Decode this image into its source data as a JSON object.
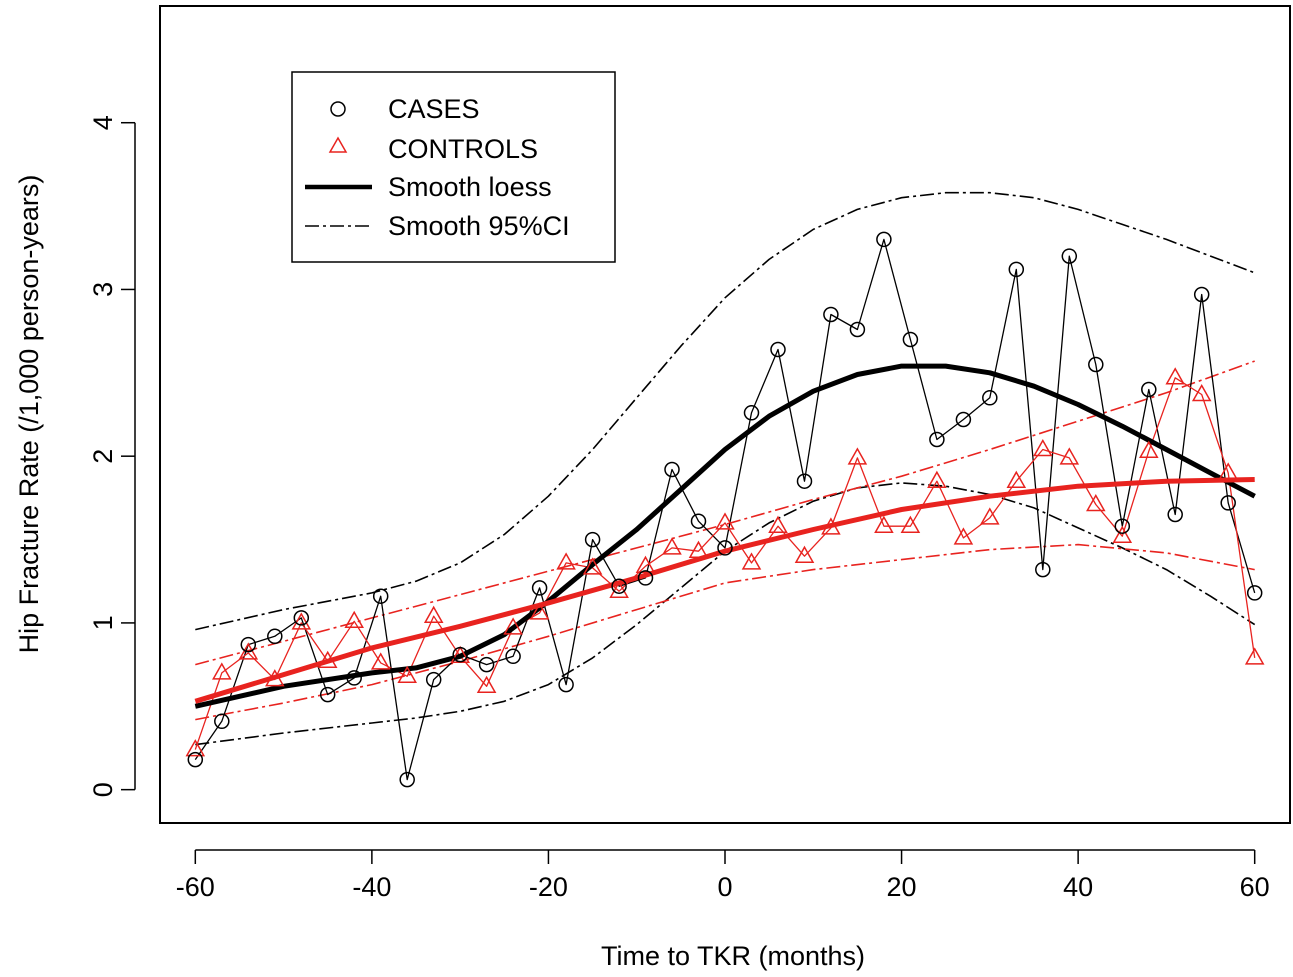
{
  "chart_data": {
    "type": "line",
    "title": "",
    "xlabel": "Time to TKR (months)",
    "ylabel": "Hip Fracture Rate (/1,000 person-years)",
    "xlim": [
      -64,
      64
    ],
    "ylim": [
      -0.2,
      4.7
    ],
    "xticks": [
      -60,
      -40,
      -20,
      0,
      20,
      40,
      60
    ],
    "yticks": [
      0,
      1,
      2,
      3,
      4
    ],
    "grid": false,
    "legend_position": "top-left",
    "legend": [
      {
        "key": "cases",
        "label": "CASES"
      },
      {
        "key": "controls",
        "label": "CONTROLS"
      },
      {
        "key": "loess",
        "label": "Smooth loess"
      },
      {
        "key": "ci",
        "label": "Smooth 95%CI"
      }
    ],
    "colors": {
      "cases": "#000000",
      "controls": "#e8231f"
    },
    "cases": {
      "x": [
        -60,
        -57,
        -54,
        -51,
        -48,
        -45,
        -42,
        -39,
        -36,
        -33,
        -30,
        -27,
        -24,
        -21,
        -18,
        -15,
        -12,
        -9,
        -6,
        -3,
        0,
        3,
        6,
        9,
        12,
        15,
        18,
        21,
        24,
        27,
        30,
        33,
        36,
        39,
        42,
        45,
        48,
        51,
        54,
        57,
        60
      ],
      "y": [
        0.18,
        0.41,
        0.87,
        0.92,
        1.03,
        0.57,
        0.67,
        1.16,
        0.06,
        0.66,
        0.81,
        0.75,
        0.8,
        1.21,
        0.63,
        1.5,
        1.22,
        1.27,
        1.92,
        1.61,
        1.45,
        2.26,
        2.64,
        1.85,
        2.85,
        2.76,
        3.3,
        2.7,
        2.1,
        2.22,
        2.35,
        3.12,
        1.32,
        3.2,
        2.55,
        1.58,
        2.4,
        1.65,
        2.97,
        1.72,
        1.18
      ]
    },
    "controls": {
      "x": [
        -60,
        -57,
        -54,
        -51,
        -48,
        -45,
        -42,
        -39,
        -36,
        -33,
        -30,
        -27,
        -24,
        -21,
        -18,
        -15,
        -12,
        -9,
        -6,
        -3,
        0,
        3,
        6,
        9,
        12,
        15,
        18,
        21,
        24,
        27,
        30,
        33,
        36,
        39,
        42,
        45,
        48,
        51,
        54,
        57,
        60
      ],
      "y": [
        0.24,
        0.7,
        0.82,
        0.66,
        1.0,
        0.77,
        1.01,
        0.76,
        0.68,
        1.04,
        0.8,
        0.62,
        0.97,
        1.06,
        1.36,
        1.33,
        1.19,
        1.34,
        1.45,
        1.43,
        1.6,
        1.36,
        1.58,
        1.4,
        1.57,
        1.99,
        1.58,
        1.58,
        1.85,
        1.51,
        1.63,
        1.85,
        2.04,
        1.99,
        1.71,
        1.52,
        2.03,
        2.47,
        2.37,
        1.9,
        0.79
      ]
    },
    "smooth_cases": {
      "x": [
        -60,
        -50,
        -40,
        -35,
        -30,
        -25,
        -20,
        -15,
        -10,
        -5,
        0,
        5,
        10,
        15,
        20,
        25,
        30,
        35,
        40,
        45,
        50,
        55,
        60
      ],
      "y": [
        0.5,
        0.62,
        0.7,
        0.73,
        0.8,
        0.93,
        1.13,
        1.35,
        1.56,
        1.8,
        2.04,
        2.24,
        2.39,
        2.49,
        2.54,
        2.54,
        2.5,
        2.42,
        2.31,
        2.18,
        2.04,
        1.9,
        1.76
      ]
    },
    "smooth_cases_ci_upper": {
      "x": [
        -60,
        -50,
        -40,
        -35,
        -30,
        -25,
        -20,
        -15,
        -10,
        -5,
        0,
        5,
        10,
        15,
        20,
        25,
        30,
        35,
        40,
        45,
        50,
        55,
        60
      ],
      "y": [
        0.96,
        1.08,
        1.18,
        1.25,
        1.36,
        1.53,
        1.76,
        2.04,
        2.35,
        2.66,
        2.95,
        3.18,
        3.36,
        3.48,
        3.55,
        3.58,
        3.58,
        3.55,
        3.48,
        3.39,
        3.3,
        3.2,
        3.1
      ]
    },
    "smooth_cases_ci_lower": {
      "x": [
        -60,
        -50,
        -40,
        -35,
        -30,
        -25,
        -20,
        -15,
        -10,
        -5,
        0,
        5,
        10,
        15,
        20,
        25,
        30,
        35,
        40,
        45,
        50,
        55,
        60
      ],
      "y": [
        0.27,
        0.34,
        0.4,
        0.43,
        0.47,
        0.53,
        0.63,
        0.79,
        0.99,
        1.21,
        1.43,
        1.6,
        1.73,
        1.81,
        1.84,
        1.82,
        1.77,
        1.69,
        1.57,
        1.45,
        1.32,
        1.16,
        0.99
      ]
    },
    "smooth_controls": {
      "x": [
        -60,
        -50,
        -40,
        -30,
        -20,
        -10,
        0,
        10,
        20,
        30,
        40,
        50,
        60
      ],
      "y": [
        0.53,
        0.69,
        0.85,
        0.98,
        1.12,
        1.27,
        1.43,
        1.56,
        1.68,
        1.76,
        1.82,
        1.85,
        1.86
      ]
    },
    "smooth_controls_ci_upper": {
      "x": [
        -60,
        -50,
        -40,
        -30,
        -20,
        -10,
        0,
        10,
        20,
        30,
        40,
        50,
        60
      ],
      "y": [
        0.75,
        0.89,
        1.03,
        1.17,
        1.31,
        1.45,
        1.59,
        1.74,
        1.88,
        2.04,
        2.21,
        2.38,
        2.57
      ]
    },
    "smooth_controls_ci_lower": {
      "x": [
        -60,
        -50,
        -40,
        -30,
        -20,
        -10,
        0,
        10,
        20,
        30,
        40,
        50,
        60
      ],
      "y": [
        0.42,
        0.52,
        0.63,
        0.77,
        0.92,
        1.08,
        1.24,
        1.32,
        1.38,
        1.44,
        1.47,
        1.42,
        1.32
      ]
    }
  }
}
